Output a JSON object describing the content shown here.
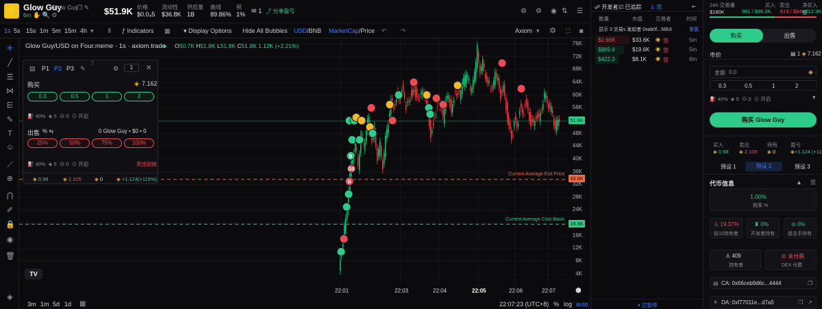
{
  "header": {
    "name": "Glow Guy",
    "sub": "Glow Guy",
    "age": "6m",
    "price": "$51.9K",
    "stats": [
      {
        "label": "价格",
        "value": "$0.0₄5"
      },
      {
        "label": "流动性",
        "value": "$36.8K"
      },
      {
        "label": "供应量",
        "value": "1B"
      },
      {
        "label": "曲线",
        "value": "89.86%"
      },
      {
        "label": "税",
        "value": "1%"
      }
    ],
    "watch_count": "1",
    "share_label": "分享盈亏"
  },
  "toolbar": {
    "intervals": [
      "1s",
      "5s",
      "15s",
      "1m",
      "5m",
      "15m",
      "4h"
    ],
    "indicators": "Indicators",
    "display_options": "Display Options",
    "hide_bubbles": "Hide All Bubbles",
    "usd": "USD",
    "bnb": "BNB",
    "marketcap": "MarketCap",
    "price": "Price",
    "brand": "Axiom"
  },
  "chart": {
    "legend_title": "Glow Guy/USD on Four.meme · 1s · axiom.trade",
    "ohlc": [
      {
        "k": "O",
        "v": "50.7K"
      },
      {
        "k": "H",
        "v": "51.8K"
      },
      {
        "k": "L",
        "v": "51.8K"
      },
      {
        "k": "C",
        "v": "51.8K"
      }
    ],
    "change": "1.12K (+2.21%)",
    "yticks": [
      "76K",
      "72K",
      "68K",
      "64K",
      "60K",
      "56K",
      "52K",
      "48K",
      "44K",
      "40K",
      "36K",
      "32K",
      "28K",
      "24K",
      "20K",
      "16K",
      "12K",
      "8K",
      "4K"
    ],
    "xticks": [
      "22:01",
      "22:03",
      "22:04",
      "22:05",
      "22:06",
      "22:07"
    ],
    "current_price": "51.8K",
    "exit_label": "Current Average Exit Price",
    "exit_value": "33.6K",
    "basis_label": "Current Average Cost Basis",
    "basis_value": "19.6K",
    "ranges": [
      "3m",
      "1m",
      "5d",
      "1d"
    ],
    "time": "22:07:23 (UTC+8)",
    "pct": "%",
    "log": "log",
    "auto": "auto"
  },
  "panel": {
    "tabs": [
      "P1",
      "P2",
      "P3"
    ],
    "pages": "1",
    "buy_label": "购买",
    "buy_balance": "7.162",
    "buy_amounts": [
      "0.3",
      "0.5",
      "1",
      "2"
    ],
    "buy_settings": [
      "40%",
      "5",
      "0",
      "开启"
    ],
    "sell_label": "出售",
    "sell_pct": "%",
    "sell_holding": "0 Glow Guy • $0 • 0",
    "sell_amounts": [
      "25%",
      "50%",
      "75%",
      "100%"
    ],
    "sell_settings": [
      "40%",
      "5",
      "0",
      "开启"
    ],
    "sell_init": "卖出初始",
    "footer": [
      "0.98",
      "2.105",
      "0",
      "+1.124(+115%)"
    ]
  },
  "trades": {
    "tab_dev": "开发者",
    "tab_tracked": "已追踪",
    "columns": [
      "数量",
      "市值",
      "交易者",
      "时间"
    ],
    "filter_text": "显示 3 交易s 发起者 0xab0f...56b3",
    "reset": "重置",
    "rows": [
      {
        "amount": "$1.66K",
        "mcap": "$33.6K",
        "age": "5m",
        "side": "sell"
      },
      {
        "amount": "$969.4",
        "mcap": "$19.6K",
        "age": "5m",
        "side": "buy"
      },
      {
        "amount": "$422.3",
        "mcap": "$8.1K",
        "age": "6m",
        "side": "buy"
      }
    ],
    "paused": "已暂停"
  },
  "right": {
    "vol_label": "24h 交易量",
    "vol_value": "$180K",
    "buy_label": "买入",
    "buy_value": "981 / $96.3K",
    "sell_label": "卖出",
    "sell_value": "619 / $84K",
    "net_label": "净买入量",
    "net_value": "+$12.3K",
    "tab_buy": "购买",
    "tab_sell": "出售",
    "market": "市价",
    "balance": "7.162",
    "amount_label": "金额",
    "amount_value": "0.0",
    "quick": [
      "0.3",
      "0.5",
      "1",
      "2"
    ],
    "settings": [
      "40%",
      "5",
      "0",
      "开启"
    ],
    "buy_button": "购买 Glow Guy",
    "pnl": [
      {
        "label": "买入",
        "value": "0.98"
      },
      {
        "label": "卖出",
        "value": "2.105"
      },
      {
        "label": "持有",
        "value": "0"
      },
      {
        "label": "盈亏",
        "value": "+1.124 (+115%)"
      }
    ],
    "presets": [
      "预设 1",
      "预设 2",
      "预设 3"
    ],
    "token_info": "代币信息",
    "tax_value": "1.00%",
    "tax_label": "税率 %",
    "info": [
      {
        "value": "19.37%",
        "label": "前10持有者"
      },
      {
        "value": "0%",
        "label": "开发者持有"
      },
      {
        "value": "0%",
        "label": "狙击手持有"
      }
    ],
    "holders_value": "409",
    "holders_label": "持有者",
    "dex_value": "未付费",
    "dex_label": "DEX 付费",
    "ca": "CA: 0x66ceb9d6c...4444",
    "da": "DA: 0xf77011e...d7a5"
  },
  "colors": {
    "green": "#2ecc8b",
    "red": "#f04b55",
    "yellow": "#f3b928",
    "accent": "#3a7bfd"
  }
}
